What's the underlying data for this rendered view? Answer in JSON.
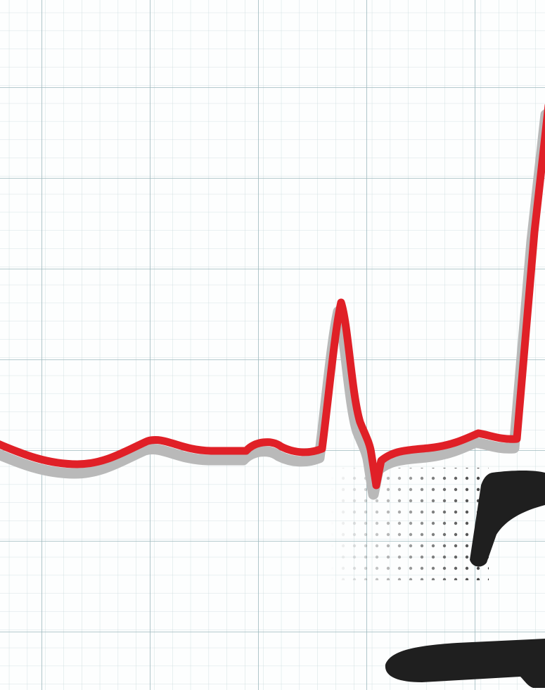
{
  "scene": {
    "subject": "ecg-rhythm-strip",
    "colors": {
      "paper": "#fdfefe",
      "minor_grid": "#c9dadd",
      "major_grid": "#9db8bd",
      "trace": "#e02027",
      "trace_shadow": "#b9b9b9",
      "halftone": "#3a3a3a",
      "silhouette": "#1f1f1f"
    },
    "trace_components": [
      "baseline",
      "p-wave",
      "qrs-complex",
      "st-segment",
      "t-wave"
    ],
    "has_grid": true,
    "has_shadow": true
  }
}
